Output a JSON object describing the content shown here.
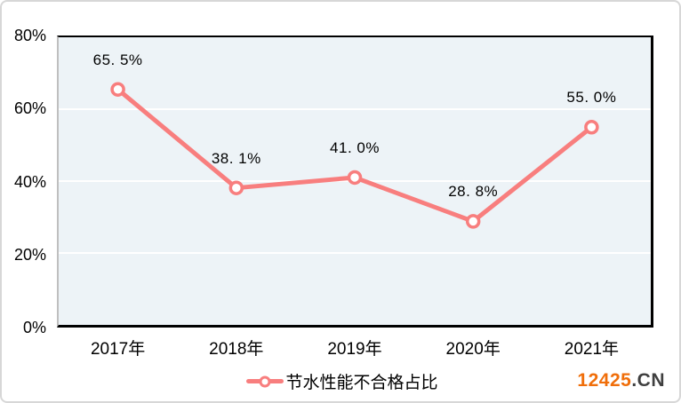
{
  "chart_data": {
    "type": "line",
    "title": "",
    "legend": "节水性能不合格占比",
    "categories": [
      "2017年",
      "2018年",
      "2019年",
      "2020年",
      "2021年"
    ],
    "values": [
      65.5,
      38.1,
      41.0,
      28.8,
      55.0
    ],
    "data_labels": [
      "65. 5%",
      "38. 1%",
      "41. 0%",
      "28. 8%",
      "55. 0%"
    ],
    "yticks": [
      {
        "label": "80%",
        "value": 80
      },
      {
        "label": "60%",
        "value": 60
      },
      {
        "label": "40%",
        "value": 40
      },
      {
        "label": "20%",
        "value": 20
      },
      {
        "label": "0%",
        "value": 0
      }
    ],
    "gridline_values": [
      60,
      40,
      20
    ],
    "ylim": [
      0,
      80
    ],
    "grid": true,
    "legend_position": "bottom",
    "colors": {
      "line": "#F87E7E",
      "marker_fill": "#FFFFFF",
      "plot_bg": "#EDF3F7",
      "gridline": "#FFFFFF",
      "axis": "#000000",
      "left_edge": "#BFBFBF"
    }
  },
  "watermark": {
    "number": "12425",
    "suffix": ".CN",
    "number_color": "#F06E0A",
    "suffix_color": "#3F3F3F"
  }
}
